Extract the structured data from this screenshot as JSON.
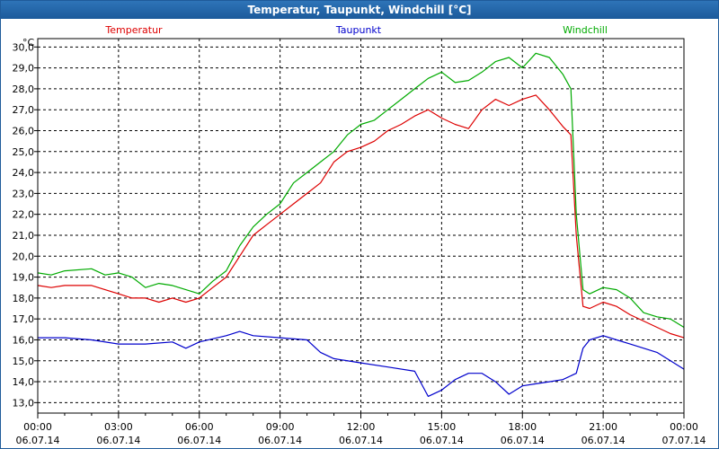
{
  "window": {
    "title": "Temperatur, Taupunkt, Windchill [°C]"
  },
  "colors": {
    "temperature": "#dd0000",
    "dewpoint": "#0000cc",
    "windchill": "#00aa00",
    "grid": "#000000",
    "titlebar": "#1f5b9a"
  },
  "chart_data": {
    "type": "line",
    "title": "Temperatur, Taupunkt, Windchill [°C]",
    "ylabel": "°C",
    "ylim": [
      12.5,
      30.4
    ],
    "grid": true,
    "legend_position": "top",
    "y_ticks": [
      "13,0",
      "14,0",
      "15,0",
      "16,0",
      "17,0",
      "18,0",
      "19,0",
      "20,0",
      "21,0",
      "22,0",
      "23,0",
      "24,0",
      "25,0",
      "26,0",
      "27,0",
      "28,0",
      "29,0",
      "30,0"
    ],
    "x_ticks": [
      {
        "time": "00:00",
        "date": "06.07.14"
      },
      {
        "time": "03:00",
        "date": "06.07.14"
      },
      {
        "time": "06:00",
        "date": "06.07.14"
      },
      {
        "time": "09:00",
        "date": "06.07.14"
      },
      {
        "time": "12:00",
        "date": "06.07.14"
      },
      {
        "time": "15:00",
        "date": "06.07.14"
      },
      {
        "time": "18:00",
        "date": "06.07.14"
      },
      {
        "time": "21:00",
        "date": "06.07.14"
      },
      {
        "time": "00:00",
        "date": "07.07.14"
      }
    ],
    "x_hours_range": [
      0,
      24
    ],
    "series": [
      {
        "name": "Temperatur",
        "color": "#dd0000",
        "hours": [
          0,
          0.5,
          1,
          2,
          3,
          3.5,
          4,
          4.5,
          5,
          5.5,
          6,
          6.5,
          7,
          7.5,
          8,
          8.5,
          9,
          9.5,
          10,
          10.5,
          11,
          11.5,
          12,
          12.5,
          13,
          13.5,
          14,
          14.5,
          15,
          15.5,
          16,
          16.5,
          17,
          17.5,
          18,
          18.5,
          19,
          19.5,
          19.8,
          20,
          20.25,
          20.5,
          21,
          21.5,
          22,
          22.5,
          23,
          23.5,
          24
        ],
        "values": [
          18.6,
          18.5,
          18.6,
          18.6,
          18.2,
          18.0,
          18.0,
          17.8,
          18.0,
          17.8,
          18.0,
          18.5,
          19.0,
          20.0,
          21.0,
          21.5,
          22.0,
          22.5,
          23.0,
          23.5,
          24.5,
          25.0,
          25.2,
          25.5,
          26.0,
          26.3,
          26.7,
          27.0,
          26.6,
          26.3,
          26.1,
          27.0,
          27.5,
          27.2,
          27.5,
          27.7,
          27.0,
          26.2,
          25.8,
          21.0,
          17.6,
          17.5,
          17.8,
          17.6,
          17.2,
          16.9,
          16.6,
          16.3,
          16.1
        ]
      },
      {
        "name": "Taupunkt",
        "color": "#0000cc",
        "hours": [
          0,
          1,
          2,
          3,
          4,
          5,
          5.5,
          6,
          7,
          7.5,
          8,
          9,
          10,
          10.5,
          11,
          12,
          13,
          14,
          14.5,
          15,
          15.5,
          16,
          16.5,
          17,
          17.5,
          18,
          18.5,
          19,
          19.5,
          20,
          20.25,
          20.5,
          21,
          21.5,
          22,
          23,
          23.5,
          24
        ],
        "values": [
          16.1,
          16.1,
          16.0,
          15.8,
          15.8,
          15.9,
          15.6,
          15.9,
          16.2,
          16.4,
          16.2,
          16.1,
          16.0,
          15.4,
          15.1,
          14.9,
          14.7,
          14.5,
          13.3,
          13.6,
          14.1,
          14.4,
          14.4,
          14.0,
          13.4,
          13.8,
          13.9,
          14.0,
          14.1,
          14.4,
          15.6,
          16.0,
          16.2,
          16.0,
          15.8,
          15.4,
          15.0,
          14.6
        ]
      },
      {
        "name": "Windchill",
        "color": "#00aa00",
        "hours": [
          0,
          0.5,
          1,
          2,
          2.5,
          3,
          3.5,
          4,
          4.5,
          5,
          5.5,
          6,
          6.5,
          7,
          7.5,
          8,
          8.5,
          9,
          9.5,
          10,
          10.5,
          11,
          11.5,
          12,
          12.5,
          13,
          13.5,
          14,
          14.5,
          15,
          15.5,
          16,
          16.5,
          17,
          17.5,
          18,
          18.5,
          19,
          19.5,
          19.8,
          20,
          20.25,
          20.5,
          21,
          21.5,
          22,
          22.5,
          23,
          23.5,
          24
        ],
        "values": [
          19.2,
          19.1,
          19.3,
          19.4,
          19.1,
          19.2,
          19.0,
          18.5,
          18.7,
          18.6,
          18.4,
          18.2,
          18.8,
          19.3,
          20.5,
          21.4,
          22.0,
          22.5,
          23.5,
          24.0,
          24.5,
          25.0,
          25.8,
          26.3,
          26.5,
          27.0,
          27.5,
          28.0,
          28.5,
          28.8,
          28.3,
          28.4,
          28.8,
          29.3,
          29.5,
          29.0,
          29.7,
          29.5,
          28.7,
          28.0,
          22.0,
          18.4,
          18.2,
          18.5,
          18.4,
          18.0,
          17.3,
          17.1,
          17.0,
          16.6
        ]
      }
    ]
  }
}
